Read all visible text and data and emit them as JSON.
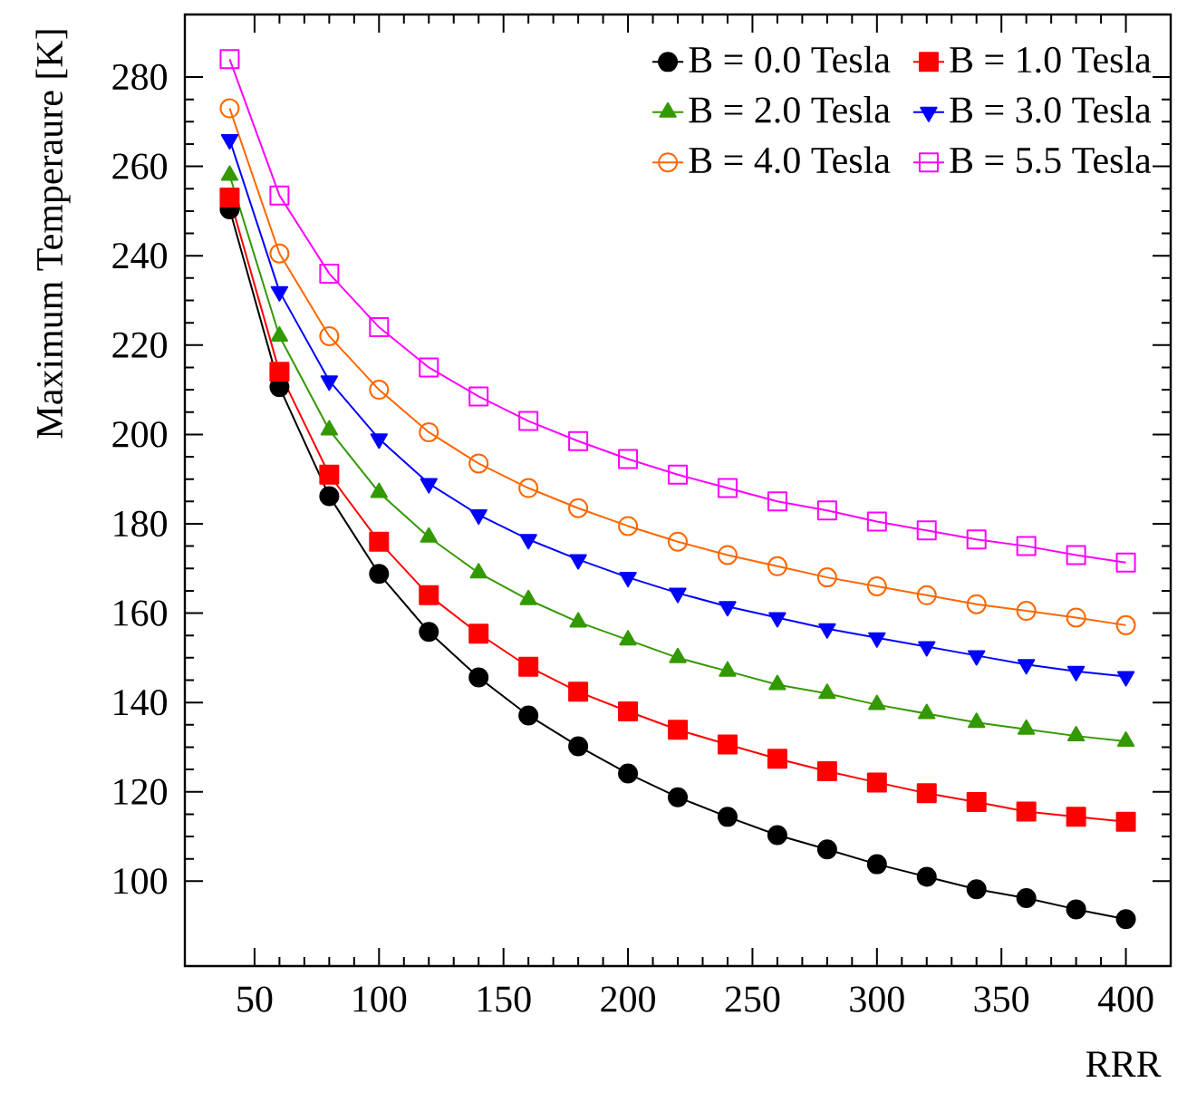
{
  "chart_data": {
    "type": "line",
    "xlabel": "RRR",
    "ylabel": "Maximum Temperaure [K]",
    "x": [
      40,
      60,
      80,
      100,
      120,
      140,
      160,
      180,
      200,
      220,
      240,
      260,
      280,
      300,
      320,
      340,
      360,
      380,
      400
    ],
    "xlim": [
      22,
      418
    ],
    "ylim": [
      81,
      294
    ],
    "xticks": [
      50,
      100,
      150,
      200,
      250,
      300,
      350,
      400
    ],
    "yticks": [
      100,
      120,
      140,
      160,
      180,
      200,
      220,
      240,
      260,
      280
    ],
    "legend": "top right",
    "grid": false,
    "series": [
      {
        "name": "B = 0.0 Tesla",
        "color": "#000000",
        "marker": "circle",
        "values": [
          250.4,
          210.6,
          186.2,
          168.8,
          155.8,
          145.6,
          137.1,
          130.2,
          124.1,
          118.8,
          114.4,
          110.3,
          107.1,
          103.8,
          101.0,
          98.2,
          96.2,
          93.7,
          91.5
        ]
      },
      {
        "name": "B = 1.0 Tesla",
        "color": "#ff0000",
        "marker": "square",
        "values": [
          253,
          214,
          191,
          176,
          164,
          155.4,
          148,
          142.4,
          138,
          133.9,
          130.6,
          127.4,
          124.6,
          122.1,
          119.7,
          117.7,
          115.6,
          114.4,
          113.3
        ]
      },
      {
        "name": "B = 2.0 Tesla",
        "color": "#339900",
        "marker": "triangle",
        "values": [
          258,
          222,
          201,
          187,
          177,
          169,
          163,
          158,
          154,
          150,
          147,
          144,
          142,
          139.5,
          137.5,
          135.5,
          134,
          132.5,
          131.3
        ]
      },
      {
        "name": "B = 3.0 Tesla",
        "color": "#0000ff",
        "marker": "triangle-down",
        "values": [
          266,
          232,
          212,
          199,
          189,
          182,
          176.5,
          172,
          168,
          164.5,
          161.5,
          159,
          156.5,
          154.5,
          152.5,
          150.5,
          148.5,
          147,
          145.8
        ]
      },
      {
        "name": "B = 4.0 Tesla",
        "color": "#ff6600",
        "marker": "circle-open",
        "values": [
          273,
          240.5,
          222,
          210,
          200.5,
          193.5,
          188,
          183.5,
          179.5,
          176,
          173,
          170.5,
          168,
          166,
          164,
          162,
          160.5,
          159,
          157.3
        ]
      },
      {
        "name": "B = 5.5 Tesla",
        "color": "#ff00ff",
        "marker": "square-open",
        "values": [
          284,
          253.5,
          236,
          224,
          215,
          208.5,
          203,
          198.5,
          194.5,
          191,
          188,
          185,
          183,
          180.5,
          178.5,
          176.5,
          175,
          173,
          171.3
        ]
      }
    ]
  }
}
